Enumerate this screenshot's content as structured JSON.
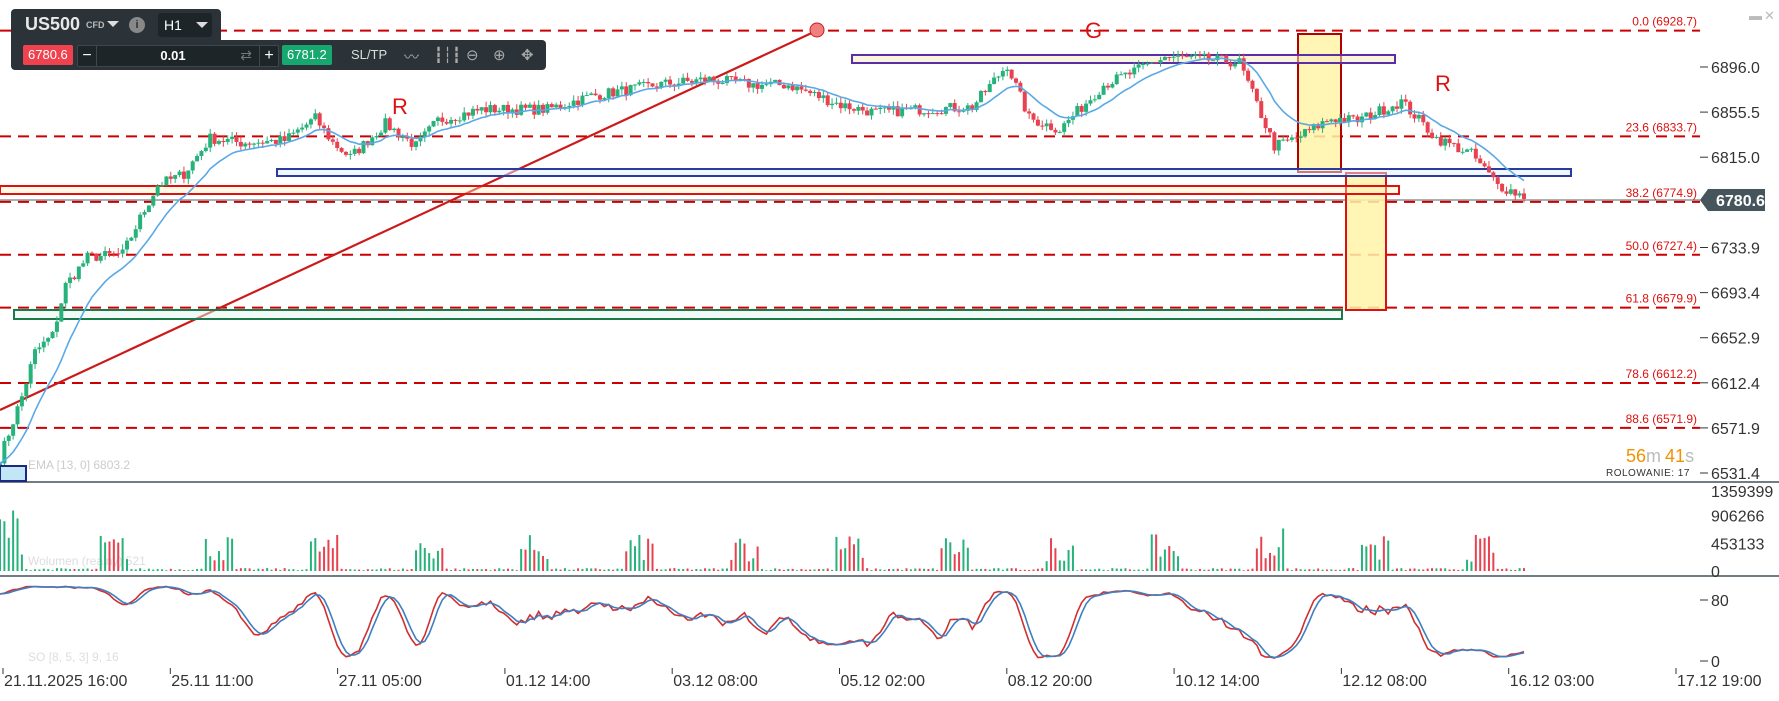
{
  "toolbar": {
    "symbol": "US500",
    "instrument_type": "CFD",
    "timeframe": "H1",
    "bid": "6780.6",
    "ask": "6781.2",
    "volume": "0.01",
    "minus": "−",
    "plus": "+",
    "sltp": "SL/TP",
    "info": "i",
    "icons": [
      "line-chart-icon",
      "candles-icon",
      "zoom-out-icon",
      "zoom-in-icon",
      "crosshair-move-icon"
    ]
  },
  "window": {
    "minimize": "▬",
    "close": "✕"
  },
  "colors": {
    "up": "#26b27a",
    "down": "#e8414f",
    "ema": "#5aa9e6",
    "fib": "#cc0000",
    "stoch_k": "#d12f2f",
    "stoch_d": "#3d7fc1",
    "timer": "#f39200"
  },
  "annotations": {
    "r1": "R",
    "g": "G",
    "r2": "R"
  },
  "price_axis": {
    "ticks": [
      "6896.0",
      "6855.5",
      "6815.0",
      "6733.9",
      "6693.4",
      "6652.9",
      "6612.4",
      "6571.9",
      "6531.4"
    ],
    "current_price": "6780.6"
  },
  "fib": [
    {
      "label": "0.0 (6928.7)",
      "price": 6928.7
    },
    {
      "label": "23.6 (6833.7)",
      "price": 6833.7
    },
    {
      "label": "38.2 (6774.9)",
      "price": 6774.9
    },
    {
      "label": "50.0 (6727.4)",
      "price": 6727.4
    },
    {
      "label": "61.8 (6679.9)",
      "price": 6679.9
    },
    {
      "label": "78.6 (6612.2)",
      "price": 6612.2
    },
    {
      "label": "88.6 (6571.9)",
      "price": 6571.9
    }
  ],
  "indicators": {
    "ema": "EMA [13, 0] 6803.2",
    "volume": "Wolumen (realny) 521",
    "stoch": "SO [8, 5, 3] 9, 16"
  },
  "timer": {
    "minutes": "56",
    "m": "m",
    "seconds": "41",
    "s": "s"
  },
  "rollover": "ROLOWANIE: 17",
  "volume_axis": [
    "1359399",
    "906266",
    "453133",
    "0"
  ],
  "stoch_axis": [
    "80",
    "0"
  ],
  "time_axis": [
    "21.11.2025 16:00",
    "25.11 11:00",
    "27.11 05:00",
    "01.12 14:00",
    "03.12 08:00",
    "05.12 02:00",
    "08.12 20:00",
    "10.12 14:00",
    "12.12 08:00",
    "16.12 03:00",
    "17.12 19:00"
  ],
  "chart_data": {
    "type": "candlestick",
    "title": "US500 H1",
    "ylim": [
      6531.4,
      6928.7
    ],
    "close_anchors": [
      [
        0,
        6545
      ],
      [
        5,
        6600
      ],
      [
        8,
        6640
      ],
      [
        12,
        6655
      ],
      [
        15,
        6700
      ],
      [
        20,
        6725
      ],
      [
        28,
        6728
      ],
      [
        32,
        6760
      ],
      [
        36,
        6790
      ],
      [
        42,
        6800
      ],
      [
        48,
        6832
      ],
      [
        55,
        6828
      ],
      [
        65,
        6830
      ],
      [
        72,
        6850
      ],
      [
        76,
        6828
      ],
      [
        80,
        6815
      ],
      [
        88,
        6845
      ],
      [
        95,
        6825
      ],
      [
        100,
        6848
      ],
      [
        110,
        6858
      ],
      [
        125,
        6858
      ],
      [
        135,
        6870
      ],
      [
        150,
        6880
      ],
      [
        162,
        6885
      ],
      [
        172,
        6880
      ],
      [
        180,
        6880
      ],
      [
        192,
        6862
      ],
      [
        200,
        6855
      ],
      [
        210,
        6858
      ],
      [
        222,
        6860
      ],
      [
        230,
        6898
      ],
      [
        235,
        6850
      ],
      [
        242,
        6840
      ],
      [
        252,
        6880
      ],
      [
        258,
        6890
      ],
      [
        266,
        6905
      ],
      [
        275,
        6903
      ],
      [
        283,
        6900
      ],
      [
        291,
        6825
      ],
      [
        296,
        6832
      ],
      [
        304,
        6850
      ],
      [
        310,
        6848
      ],
      [
        320,
        6865
      ],
      [
        328,
        6832
      ],
      [
        336,
        6818
      ],
      [
        342,
        6790
      ],
      [
        348,
        6780
      ]
    ],
    "candle_count": 349,
    "ema_period": 13,
    "stoch_params": [
      8,
      5,
      3
    ],
    "volume_max": 1359399
  }
}
